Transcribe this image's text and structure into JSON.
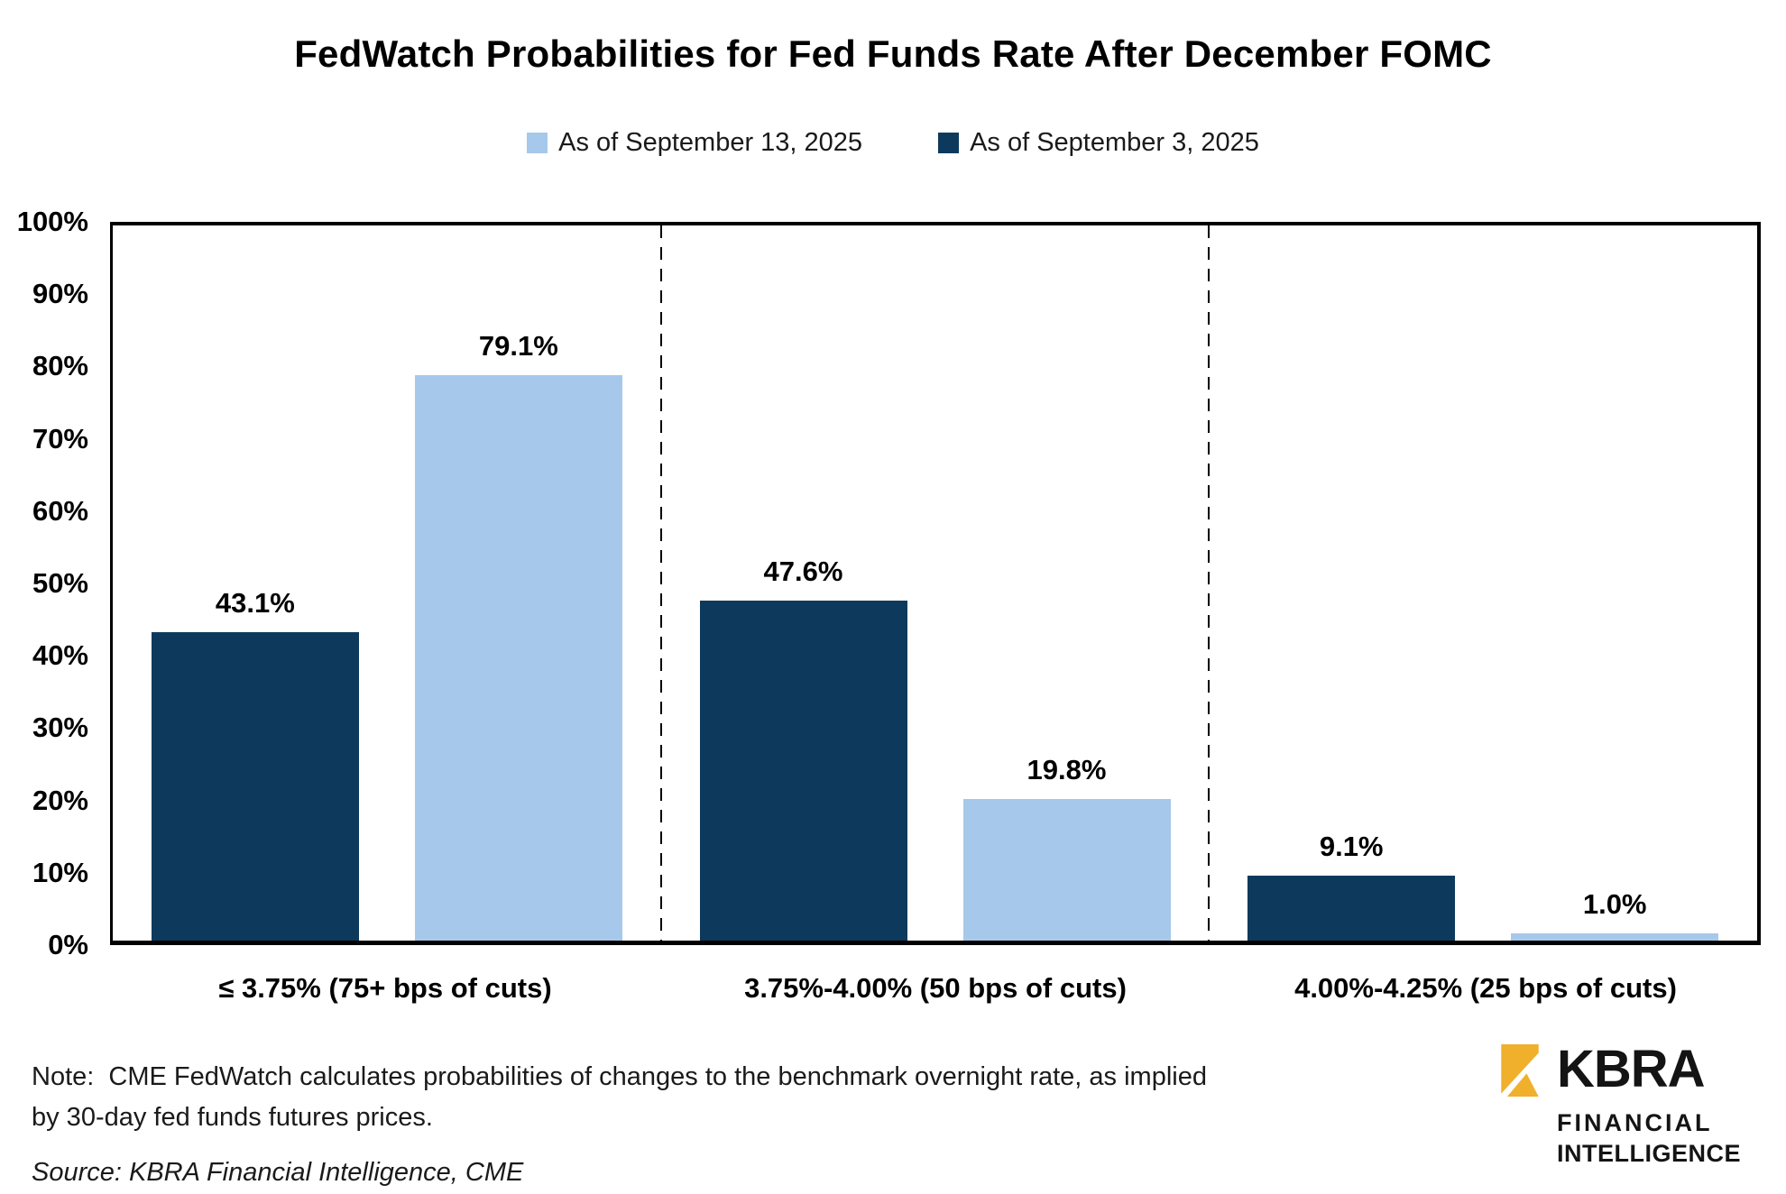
{
  "title": "FedWatch Probabilities for Fed Funds Rate After December FOMC",
  "legend": [
    {
      "label": "As of September 13, 2025",
      "color": "#A6C8EB"
    },
    {
      "label": "As of September 3, 2025",
      "color": "#0D3A5C"
    }
  ],
  "chart_data": {
    "type": "bar",
    "title": "FedWatch Probabilities for Fed Funds Rate After December FOMC",
    "categories": [
      "≤ 3.75% (75+ bps of cuts)",
      "3.75%-4.00% (50 bps of cuts)",
      "4.00%-4.25% (25 bps of cuts)"
    ],
    "series": [
      {
        "name": "As of September 3, 2025",
        "color": "#0D3A5C",
        "position": "left",
        "values": [
          43.1,
          47.6,
          9.1
        ],
        "labels": [
          "43.1%",
          "47.6%",
          "9.1%"
        ]
      },
      {
        "name": "As of September 13, 2025",
        "color": "#A6C8EB",
        "position": "right",
        "values": [
          79.1,
          19.8,
          1.0
        ],
        "labels": [
          "79.1%",
          "19.8%",
          "1.0%"
        ]
      }
    ],
    "xlabel": "",
    "ylabel": "",
    "ylim": [
      0,
      100
    ],
    "yticks": [
      "100%",
      "90%",
      "80%",
      "70%",
      "60%",
      "50%",
      "40%",
      "30%",
      "20%",
      "10%",
      "0%"
    ],
    "grid": false,
    "category_separators": "dashed",
    "legend_position": "top"
  },
  "note": {
    "text": "Note:  CME FedWatch calculates probabilities of changes to the benchmark overnight rate, as implied by 30-day fed funds futures prices."
  },
  "source": {
    "text": "Source: KBRA Financial Intelligence, CME"
  },
  "logo": {
    "brand": "KBRA",
    "line1": "FINANCIAL",
    "line2": "INTELLIGENCE",
    "mark_color": "#F0B02B"
  }
}
